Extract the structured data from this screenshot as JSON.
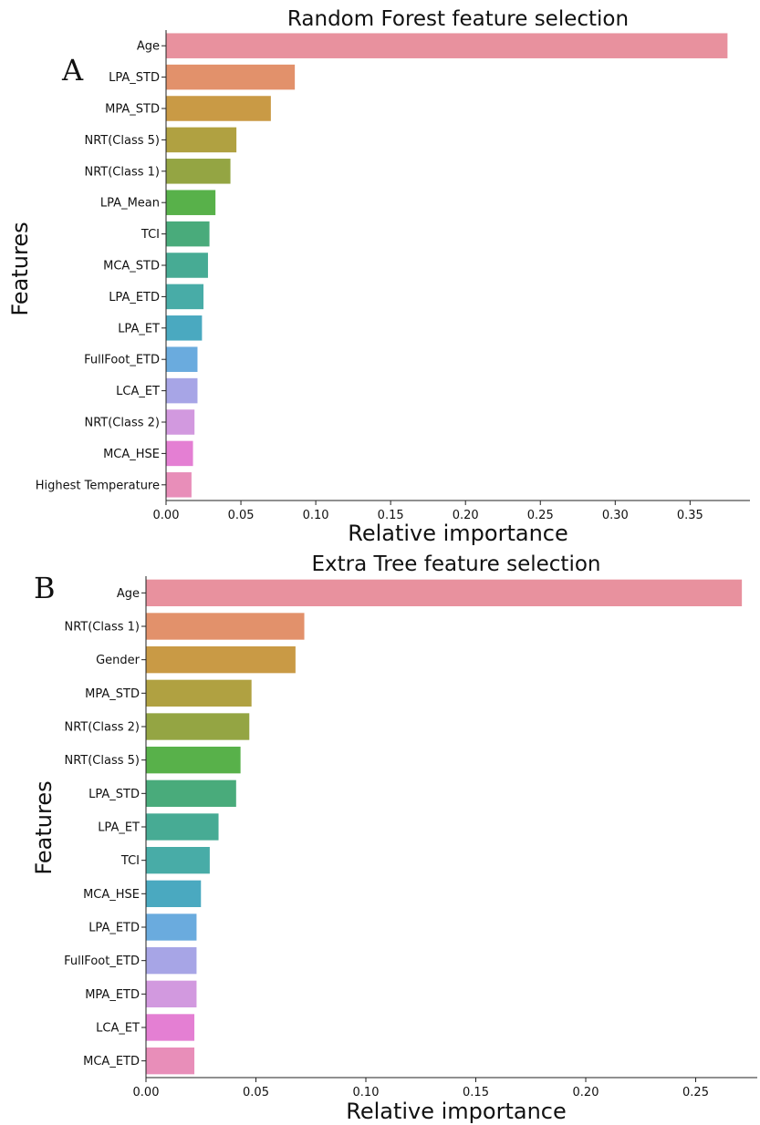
{
  "chart_data": [
    {
      "type": "bar",
      "orientation": "horizontal",
      "panel_label": "A",
      "title": "Random Forest feature selection",
      "xlabel": "Relative importance",
      "ylabel": "Features",
      "xlim": [
        0,
        0.39
      ],
      "xticks": [
        "0.00",
        "0.05",
        "0.10",
        "0.15",
        "0.20",
        "0.25",
        "0.30",
        "0.35"
      ],
      "categories": [
        "Age",
        "LPA_STD",
        "MPA_STD",
        "NRT(Class 5)",
        "NRT(Class 1)",
        "LPA_Mean",
        "TCI",
        "MCA_STD",
        "LPA_ETD",
        "LPA_ET",
        "FullFoot_ETD",
        "LCA_ET",
        "NRT(Class 2)",
        "MCA_HSE",
        "Highest Temperature"
      ],
      "values": [
        0.375,
        0.086,
        0.07,
        0.047,
        0.043,
        0.033,
        0.029,
        0.028,
        0.025,
        0.024,
        0.021,
        0.021,
        0.019,
        0.018,
        0.017
      ],
      "colors": [
        "#e8919e",
        "#e2916b",
        "#c99a45",
        "#b0a141",
        "#94a543",
        "#58b14a",
        "#49ab7b",
        "#47ab94",
        "#48aca7",
        "#4aa9c0",
        "#6aabde",
        "#a7a5e6",
        "#d299df",
        "#e47fd3",
        "#e88eb9"
      ],
      "grid": false
    },
    {
      "type": "bar",
      "orientation": "horizontal",
      "panel_label": "B",
      "title": "Extra Tree feature selection",
      "xlabel": "Relative importance",
      "ylabel": "Features",
      "xlim": [
        0,
        0.278
      ],
      "xticks": [
        "0.00",
        "0.05",
        "0.10",
        "0.15",
        "0.20",
        "0.25"
      ],
      "categories": [
        "Age",
        "NRT(Class 1)",
        "Gender",
        "MPA_STD",
        "NRT(Class 2)",
        "NRT(Class 5)",
        "LPA_STD",
        "LPA_ET",
        "TCI",
        "MCA_HSE",
        "LPA_ETD",
        "FullFoot_ETD",
        "MPA_ETD",
        "LCA_ET",
        "MCA_ETD"
      ],
      "values": [
        0.271,
        0.072,
        0.068,
        0.048,
        0.047,
        0.043,
        0.041,
        0.033,
        0.029,
        0.025,
        0.023,
        0.023,
        0.023,
        0.022,
        0.022
      ],
      "colors": [
        "#e8919e",
        "#e2916b",
        "#c99a45",
        "#b0a141",
        "#94a543",
        "#58b14a",
        "#49ab7b",
        "#47ab94",
        "#48aca7",
        "#4aa9c0",
        "#6aabde",
        "#a7a5e6",
        "#d299df",
        "#e47fd3",
        "#e88eb9"
      ],
      "grid": false
    }
  ]
}
